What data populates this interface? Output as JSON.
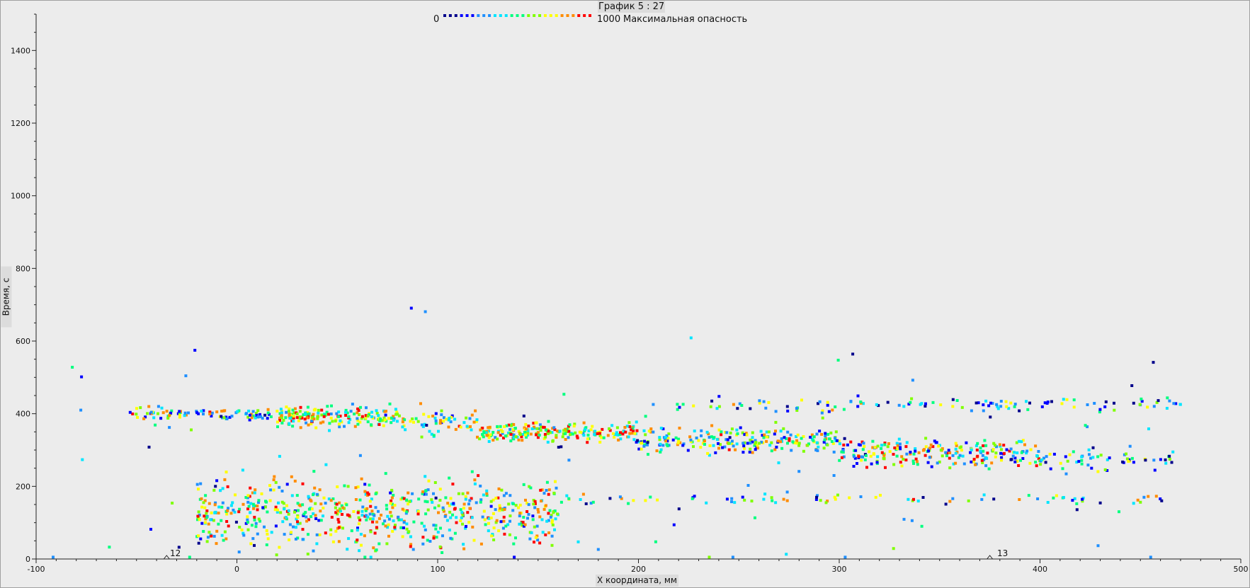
{
  "header": {
    "title": "График 5 : 27",
    "legend_min": "0",
    "legend_max": "1000",
    "legend_label": "Максимальная опасность"
  },
  "axes": {
    "xlabel": "Х координата, мм",
    "ylabel": "Время, с"
  },
  "markers": [
    {
      "label": "12",
      "x": -35
    },
    {
      "label": "13",
      "x": 375
    }
  ],
  "chart_data": {
    "type": "scatter",
    "title": "График 5 : 27",
    "xlabel": "Х координата, мм",
    "ylabel": "Время, с",
    "xlim": [
      -100,
      500
    ],
    "ylim": [
      0,
      1500
    ],
    "x_ticks": [
      -100,
      0,
      100,
      200,
      300,
      400,
      500
    ],
    "y_ticks": [
      0,
      200,
      400,
      600,
      800,
      1000,
      1200,
      1400
    ],
    "grid": false,
    "colorbar": {
      "min": 0,
      "max": 1000,
      "label": "Максимальная опасность",
      "colors": [
        "#00008b",
        "#0000ff",
        "#1f90ff",
        "#00e5ff",
        "#00ff7f",
        "#7fff00",
        "#ffff00",
        "#ff8c00",
        "#ff0000"
      ]
    },
    "clusters": [
      {
        "x_range": [
          -55,
          20
        ],
        "y_center": 400,
        "y_spread": 8,
        "value_range": [
          100,
          900
        ],
        "count": 90
      },
      {
        "x_range": [
          20,
          80
        ],
        "y_center": 390,
        "y_spread": 14,
        "value_range": [
          300,
          1000
        ],
        "count": 180
      },
      {
        "x_range": [
          80,
          120
        ],
        "y_center": 375,
        "y_spread": 18,
        "value_range": [
          200,
          900
        ],
        "count": 60
      },
      {
        "x_range": [
          120,
          200
        ],
        "y_center": 350,
        "y_spread": 12,
        "value_range": [
          300,
          1000
        ],
        "count": 220
      },
      {
        "x_range": [
          200,
          300
        ],
        "y_center": 325,
        "y_spread": 18,
        "value_range": [
          100,
          900
        ],
        "count": 230
      },
      {
        "x_range": [
          300,
          400
        ],
        "y_center": 292,
        "y_spread": 20,
        "value_range": [
          100,
          1000
        ],
        "count": 230
      },
      {
        "x_range": [
          400,
          470
        ],
        "y_center": 272,
        "y_spread": 14,
        "value_range": [
          0,
          700
        ],
        "count": 60
      },
      {
        "x_range": [
          -20,
          160
        ],
        "y_center": 125,
        "y_spread": 45,
        "value_range": [
          200,
          1000
        ],
        "count": 650
      },
      {
        "x_range": [
          160,
          470
        ],
        "y_center": 165,
        "y_spread": 8,
        "value_range": [
          0,
          900
        ],
        "count": 80
      },
      {
        "x_range": [
          200,
          470
        ],
        "y_center": 425,
        "y_spread": 10,
        "value_range": [
          0,
          800
        ],
        "count": 120
      },
      {
        "x_range": [
          -100,
          475
        ],
        "y_center": 250,
        "y_spread": 190,
        "value_range": [
          0,
          600
        ],
        "count": 90
      }
    ]
  }
}
